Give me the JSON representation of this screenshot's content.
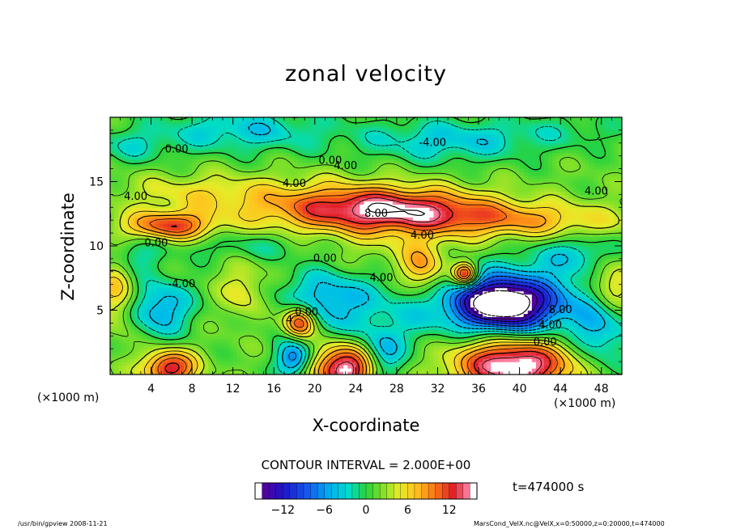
{
  "chart_data": {
    "type": "heatmap",
    "title": "zonal velocity",
    "xlabel": "X-coordinate",
    "ylabel": "Z-coordinate",
    "x_unit_left": "(×1000 m)",
    "x_unit_right": "(×1000 m)",
    "xlim": [
      0,
      50
    ],
    "ylim": [
      0,
      20
    ],
    "x_ticks": [
      4,
      8,
      12,
      16,
      20,
      24,
      28,
      32,
      36,
      40,
      44,
      48
    ],
    "y_ticks": [
      5,
      10,
      15
    ],
    "contour_interval_label": "CONTOUR INTERVAL = 2.000E+00",
    "time_label": "t=474000 s",
    "colorbar": {
      "min": -16,
      "max": 16,
      "ticks": [
        -12,
        -6,
        0,
        6,
        12
      ]
    },
    "contour_labels": [
      {
        "x": 6.5,
        "y": 17.5,
        "text": "0.00"
      },
      {
        "x": 21.5,
        "y": 16.6,
        "text": "0.00"
      },
      {
        "x": 23.0,
        "y": 16.2,
        "text": "4.00"
      },
      {
        "x": 31.5,
        "y": 18.0,
        "text": "-4.00"
      },
      {
        "x": 18.0,
        "y": 14.8,
        "text": "4.00"
      },
      {
        "x": 2.5,
        "y": 13.8,
        "text": "4.00"
      },
      {
        "x": 26.0,
        "y": 12.5,
        "text": "8.00"
      },
      {
        "x": 47.5,
        "y": 14.2,
        "text": "4.00"
      },
      {
        "x": 30.5,
        "y": 10.8,
        "text": "4.00"
      },
      {
        "x": 4.5,
        "y": 10.2,
        "text": "0.00"
      },
      {
        "x": 21.0,
        "y": 9.0,
        "text": "0.00"
      },
      {
        "x": 7.0,
        "y": 7.0,
        "text": "-4.00"
      },
      {
        "x": 26.5,
        "y": 7.5,
        "text": "4.00"
      },
      {
        "x": 19.2,
        "y": 4.8,
        "text": "0.00"
      },
      {
        "x": 17.5,
        "y": 4.2,
        "text": "4"
      },
      {
        "x": 44.0,
        "y": 5.0,
        "text": "8.00"
      },
      {
        "x": 43.0,
        "y": 3.8,
        "text": "4.00"
      },
      {
        "x": 42.5,
        "y": 2.5,
        "text": "0.00"
      }
    ],
    "field_features": [
      {
        "x": 5.8,
        "z": 11.6,
        "value": 10,
        "sx": 3.0,
        "sz": 0.8
      },
      {
        "x": 28.0,
        "z": 12.8,
        "value": 11,
        "sx": 6.5,
        "sz": 1.2
      },
      {
        "x": 20.0,
        "z": 13.2,
        "value": 5,
        "sx": 7.0,
        "sz": 1.4
      },
      {
        "x": 40.0,
        "z": 12.0,
        "value": 6,
        "sx": 7.0,
        "sz": 1.0
      },
      {
        "x": 8.0,
        "z": 14.2,
        "value": 3,
        "sx": 5.0,
        "sz": 1.0
      },
      {
        "x": 38.0,
        "z": 5.5,
        "value": -16,
        "sx": 3.0,
        "sz": 1.3
      },
      {
        "x": 40.5,
        "z": 5.6,
        "value": -8,
        "sx": 5.0,
        "sz": 2.2
      },
      {
        "x": 5.8,
        "z": 0.5,
        "value": 12,
        "sx": 1.8,
        "sz": 1.0
      },
      {
        "x": 23.0,
        "z": 0.5,
        "value": 15,
        "sx": 2.2,
        "sz": 1.3
      },
      {
        "x": 39.5,
        "z": 0.8,
        "value": 16,
        "sx": 4.0,
        "sz": 1.5
      },
      {
        "x": 18.5,
        "z": 4.1,
        "value": 13,
        "sx": 1.1,
        "sz": 0.9
      },
      {
        "x": 34.7,
        "z": 7.8,
        "value": 13,
        "sx": 0.8,
        "sz": 0.6
      },
      {
        "x": 25.0,
        "z": 9.5,
        "value": 2,
        "sx": 6.0,
        "sz": 1.5
      },
      {
        "x": 13.0,
        "z": 6.5,
        "value": 4,
        "sx": 1.5,
        "sz": 1.5
      },
      {
        "x": 30.5,
        "z": 8.2,
        "value": 7,
        "sx": 1.5,
        "sz": 1.4
      },
      {
        "x": 49.0,
        "z": 7.0,
        "value": 6,
        "sx": 1.5,
        "sz": 1.5
      },
      {
        "x": 0.8,
        "z": 6.5,
        "value": 6,
        "sx": 1.3,
        "sz": 2.0
      },
      {
        "x": 21.5,
        "z": 5.8,
        "value": -7,
        "sx": 3.5,
        "sz": 2.0
      },
      {
        "x": 4.8,
        "z": 5.2,
        "value": -7,
        "sx": 2.3,
        "sz": 1.6
      },
      {
        "x": 18.0,
        "z": 1.2,
        "value": -9,
        "sx": 1.2,
        "sz": 1.0
      },
      {
        "x": 26.5,
        "z": 1.5,
        "value": -7,
        "sx": 1.5,
        "sz": 1.5
      },
      {
        "x": 30.0,
        "z": 5.0,
        "value": -3,
        "sx": 2.5,
        "sz": 2.0
      },
      {
        "x": 2.0,
        "z": 9.2,
        "value": -4,
        "sx": 2.0,
        "sz": 1.0
      },
      {
        "x": 14.0,
        "z": 10.0,
        "value": -3,
        "sx": 5.0,
        "sz": 0.8
      },
      {
        "x": 46.0,
        "z": 9.5,
        "value": -4,
        "sx": 3.0,
        "sz": 1.0
      },
      {
        "x": 48.0,
        "z": 3.0,
        "value": -5,
        "sx": 2.0,
        "sz": 2.0
      },
      {
        "x": 13.0,
        "z": 19.0,
        "value": -5,
        "sx": 6.0,
        "sz": 1.2
      },
      {
        "x": 33.0,
        "z": 18.2,
        "value": -5,
        "sx": 6.0,
        "sz": 1.2
      },
      {
        "x": 2.0,
        "z": 17.8,
        "value": -3,
        "sx": 3.0,
        "sz": 1.0
      },
      {
        "x": 45.0,
        "z": 19.0,
        "value": -2,
        "sx": 5.0,
        "sz": 1.0
      }
    ],
    "grid": false
  },
  "footer": {
    "left": "/usr/bin/gpview   2008-11-21",
    "right": "MarsCond_VelX.nc@VelX,x=0:50000,z=0:20000,t=474000"
  }
}
